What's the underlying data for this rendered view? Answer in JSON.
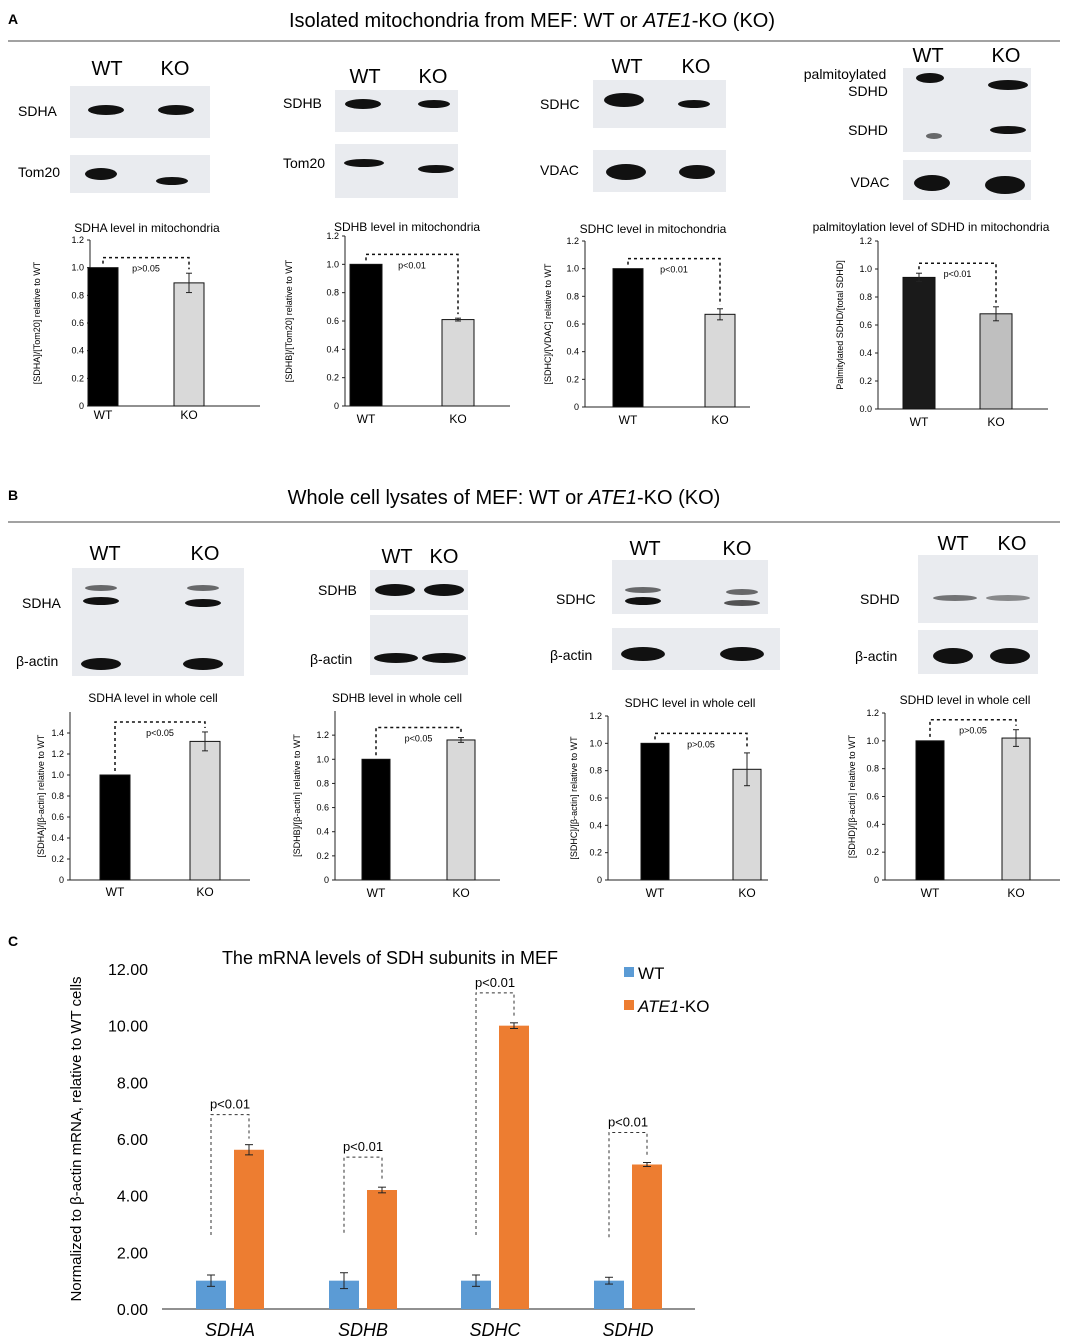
{
  "panelA": {
    "letter": "A",
    "title_prefix": "Isolated mitochondria from MEF: WT or ",
    "title_italic": "ATE1",
    "title_suffix": "-KO (KO)",
    "blots": [
      {
        "cols": [
          "WT",
          "KO"
        ],
        "rows": [
          "SDHA",
          "Tom20"
        ]
      },
      {
        "cols": [
          "WT",
          "KO"
        ],
        "rows": [
          "SDHB",
          "Tom20"
        ]
      },
      {
        "cols": [
          "WT",
          "KO"
        ],
        "rows": [
          "SDHC",
          "VDAC"
        ]
      },
      {
        "cols": [
          "WT",
          "KO"
        ],
        "rows": [
          "palmitoylated",
          "SDHD",
          "SDHD",
          "VDAC"
        ]
      }
    ]
  },
  "panelB": {
    "letter": "B",
    "title_prefix": "Whole cell lysates of MEF: WT or ",
    "title_italic": "ATE1",
    "title_suffix": "-KO (KO)",
    "blots": [
      {
        "cols": [
          "WT",
          "KO"
        ],
        "rows": [
          "SDHA",
          "β-actin"
        ]
      },
      {
        "cols": [
          "WT",
          "KO"
        ],
        "rows": [
          "SDHB",
          "β-actin"
        ]
      },
      {
        "cols": [
          "WT",
          "KO"
        ],
        "rows": [
          "SDHC",
          "β-actin"
        ]
      },
      {
        "cols": [
          "WT",
          "KO"
        ],
        "rows": [
          "SDHD",
          "β-actin"
        ]
      }
    ]
  },
  "panelC": {
    "letter": "C"
  },
  "chart_data": [
    {
      "id": "a1",
      "type": "bar",
      "title": "SDHA level in mitochondria",
      "ylabel": "[SDHA]/[Tom20] relative to WT",
      "categories": [
        "WT",
        "KO"
      ],
      "values": [
        1.0,
        0.89
      ],
      "errors": [
        0.0,
        0.07
      ],
      "colors": [
        "#000000",
        "#d9d9d9"
      ],
      "ylim": [
        0,
        1.2
      ],
      "ticks": [
        "0",
        "0.2",
        "0.4",
        "0.6",
        "0.8",
        "1.0",
        "1.2"
      ],
      "annotation": "p>0.05"
    },
    {
      "id": "a2",
      "type": "bar",
      "title": "SDHB level in mitochondria",
      "ylabel": "[SDHB]/[Tom20] relative to WT",
      "categories": [
        "WT",
        "KO"
      ],
      "values": [
        1.0,
        0.61
      ],
      "errors": [
        0.0,
        0.01
      ],
      "colors": [
        "#000000",
        "#d9d9d9"
      ],
      "ylim": [
        0,
        1.2
      ],
      "ticks": [
        "0",
        "0.2",
        "0.4",
        "0.6",
        "0.8",
        "1.0",
        "1.2"
      ],
      "annotation": "p<0.01"
    },
    {
      "id": "a3",
      "type": "bar",
      "title": "SDHC level in mitochondria",
      "ylabel": "[SDHC]/[VDAC] relative to WT",
      "categories": [
        "WT",
        "KO"
      ],
      "values": [
        1.0,
        0.67
      ],
      "errors": [
        0.0,
        0.04
      ],
      "colors": [
        "#000000",
        "#d9d9d9"
      ],
      "ylim": [
        0,
        1.2
      ],
      "ticks": [
        "0",
        "0.2",
        "0.4",
        "0.6",
        "0.8",
        "1.0",
        "1.2"
      ],
      "annotation": "p<0.01"
    },
    {
      "id": "a4",
      "type": "bar",
      "title": "palmitoylation level of SDHD in mitochondria",
      "ylabel": "Palmitylated SDHD/[total SDHD]",
      "categories": [
        "WT",
        "KO"
      ],
      "values": [
        0.94,
        0.68
      ],
      "errors": [
        0.03,
        0.05
      ],
      "colors": [
        "#1a1a1a",
        "#bfbfbf"
      ],
      "ylim": [
        0,
        1.2
      ],
      "ticks": [
        "0.0",
        "0.2",
        "0.4",
        "0.6",
        "0.8",
        "1.0",
        "1.2"
      ],
      "annotation": "p<0.01"
    },
    {
      "id": "b1",
      "type": "bar",
      "title": "SDHA level in whole cell",
      "ylabel": "[SDHA]/[β-actin] relative to WT",
      "categories": [
        "WT",
        "KO"
      ],
      "values": [
        1.0,
        1.32
      ],
      "errors": [
        0.0,
        0.09
      ],
      "colors": [
        "#000000",
        "#d9d9d9"
      ],
      "ylim": [
        0,
        1.6
      ],
      "ticks": [
        "0",
        "0.2",
        "0.4",
        "0.6",
        "0.8",
        "1.0",
        "1.2",
        "1.4"
      ],
      "annotation": "p<0.05"
    },
    {
      "id": "b2",
      "type": "bar",
      "title": "SDHB level in whole cell",
      "ylabel": "[SDHB]/[β-actin] relative to WT",
      "categories": [
        "WT",
        "KO"
      ],
      "values": [
        1.0,
        1.16
      ],
      "errors": [
        0.0,
        0.02
      ],
      "colors": [
        "#000000",
        "#d9d9d9"
      ],
      "ylim": [
        0,
        1.4
      ],
      "ticks": [
        "0",
        "0.2",
        "0.4",
        "0.6",
        "0.8",
        "1.0",
        "1.2"
      ],
      "annotation": "p<0.05"
    },
    {
      "id": "b3",
      "type": "bar",
      "title": "SDHC level in whole cell",
      "ylabel": "[SDHC]/[β-actin] relative to WT",
      "categories": [
        "WT",
        "KO"
      ],
      "values": [
        1.0,
        0.81
      ],
      "errors": [
        0.0,
        0.12
      ],
      "colors": [
        "#000000",
        "#d9d9d9"
      ],
      "ylim": [
        0,
        1.2
      ],
      "ticks": [
        "0",
        "0.2",
        "0.4",
        "0.6",
        "0.8",
        "1.0",
        "1.2"
      ],
      "annotation": "p>0.05"
    },
    {
      "id": "b4",
      "type": "bar",
      "title": "SDHD level in whole cell",
      "ylabel": "[SDHD]/[β-actin] relative to WT",
      "categories": [
        "WT",
        "KO"
      ],
      "values": [
        1.0,
        1.02
      ],
      "errors": [
        0.0,
        0.06
      ],
      "colors": [
        "#000000",
        "#d9d9d9"
      ],
      "ylim": [
        0,
        1.2
      ],
      "ticks": [
        "0",
        "0.2",
        "0.4",
        "0.6",
        "0.8",
        "1.0",
        "1.2"
      ],
      "annotation": "p>0.05"
    },
    {
      "id": "c",
      "type": "bar",
      "title": "The mRNA levels of SDH subunits in MEF",
      "ylabel": "Normalized to β-actin mRNA, relative to WT cells",
      "categories": [
        "SDHA",
        "SDHB",
        "SDHC",
        "SDHD"
      ],
      "series": [
        {
          "name": "WT",
          "color": "#5b9bd5",
          "values": [
            1.0,
            1.0,
            1.0,
            1.0
          ],
          "errors": [
            0.2,
            0.28,
            0.2,
            0.12
          ]
        },
        {
          "name": "KO",
          "legend_italic": "ATE1",
          "legend_suffix": "-KO",
          "color": "#ed7d31",
          "values": [
            5.62,
            4.2,
            10.0,
            5.1
          ],
          "errors": [
            0.18,
            0.1,
            0.1,
            0.07
          ]
        }
      ],
      "ylim": [
        0,
        12
      ],
      "ticks": [
        "0.00",
        "2.00",
        "4.00",
        "6.00",
        "8.00",
        "10.00",
        "12.00"
      ],
      "annotations": [
        "p<0.01",
        "p<0.01",
        "p<0.01",
        "p<0.01"
      ]
    }
  ]
}
